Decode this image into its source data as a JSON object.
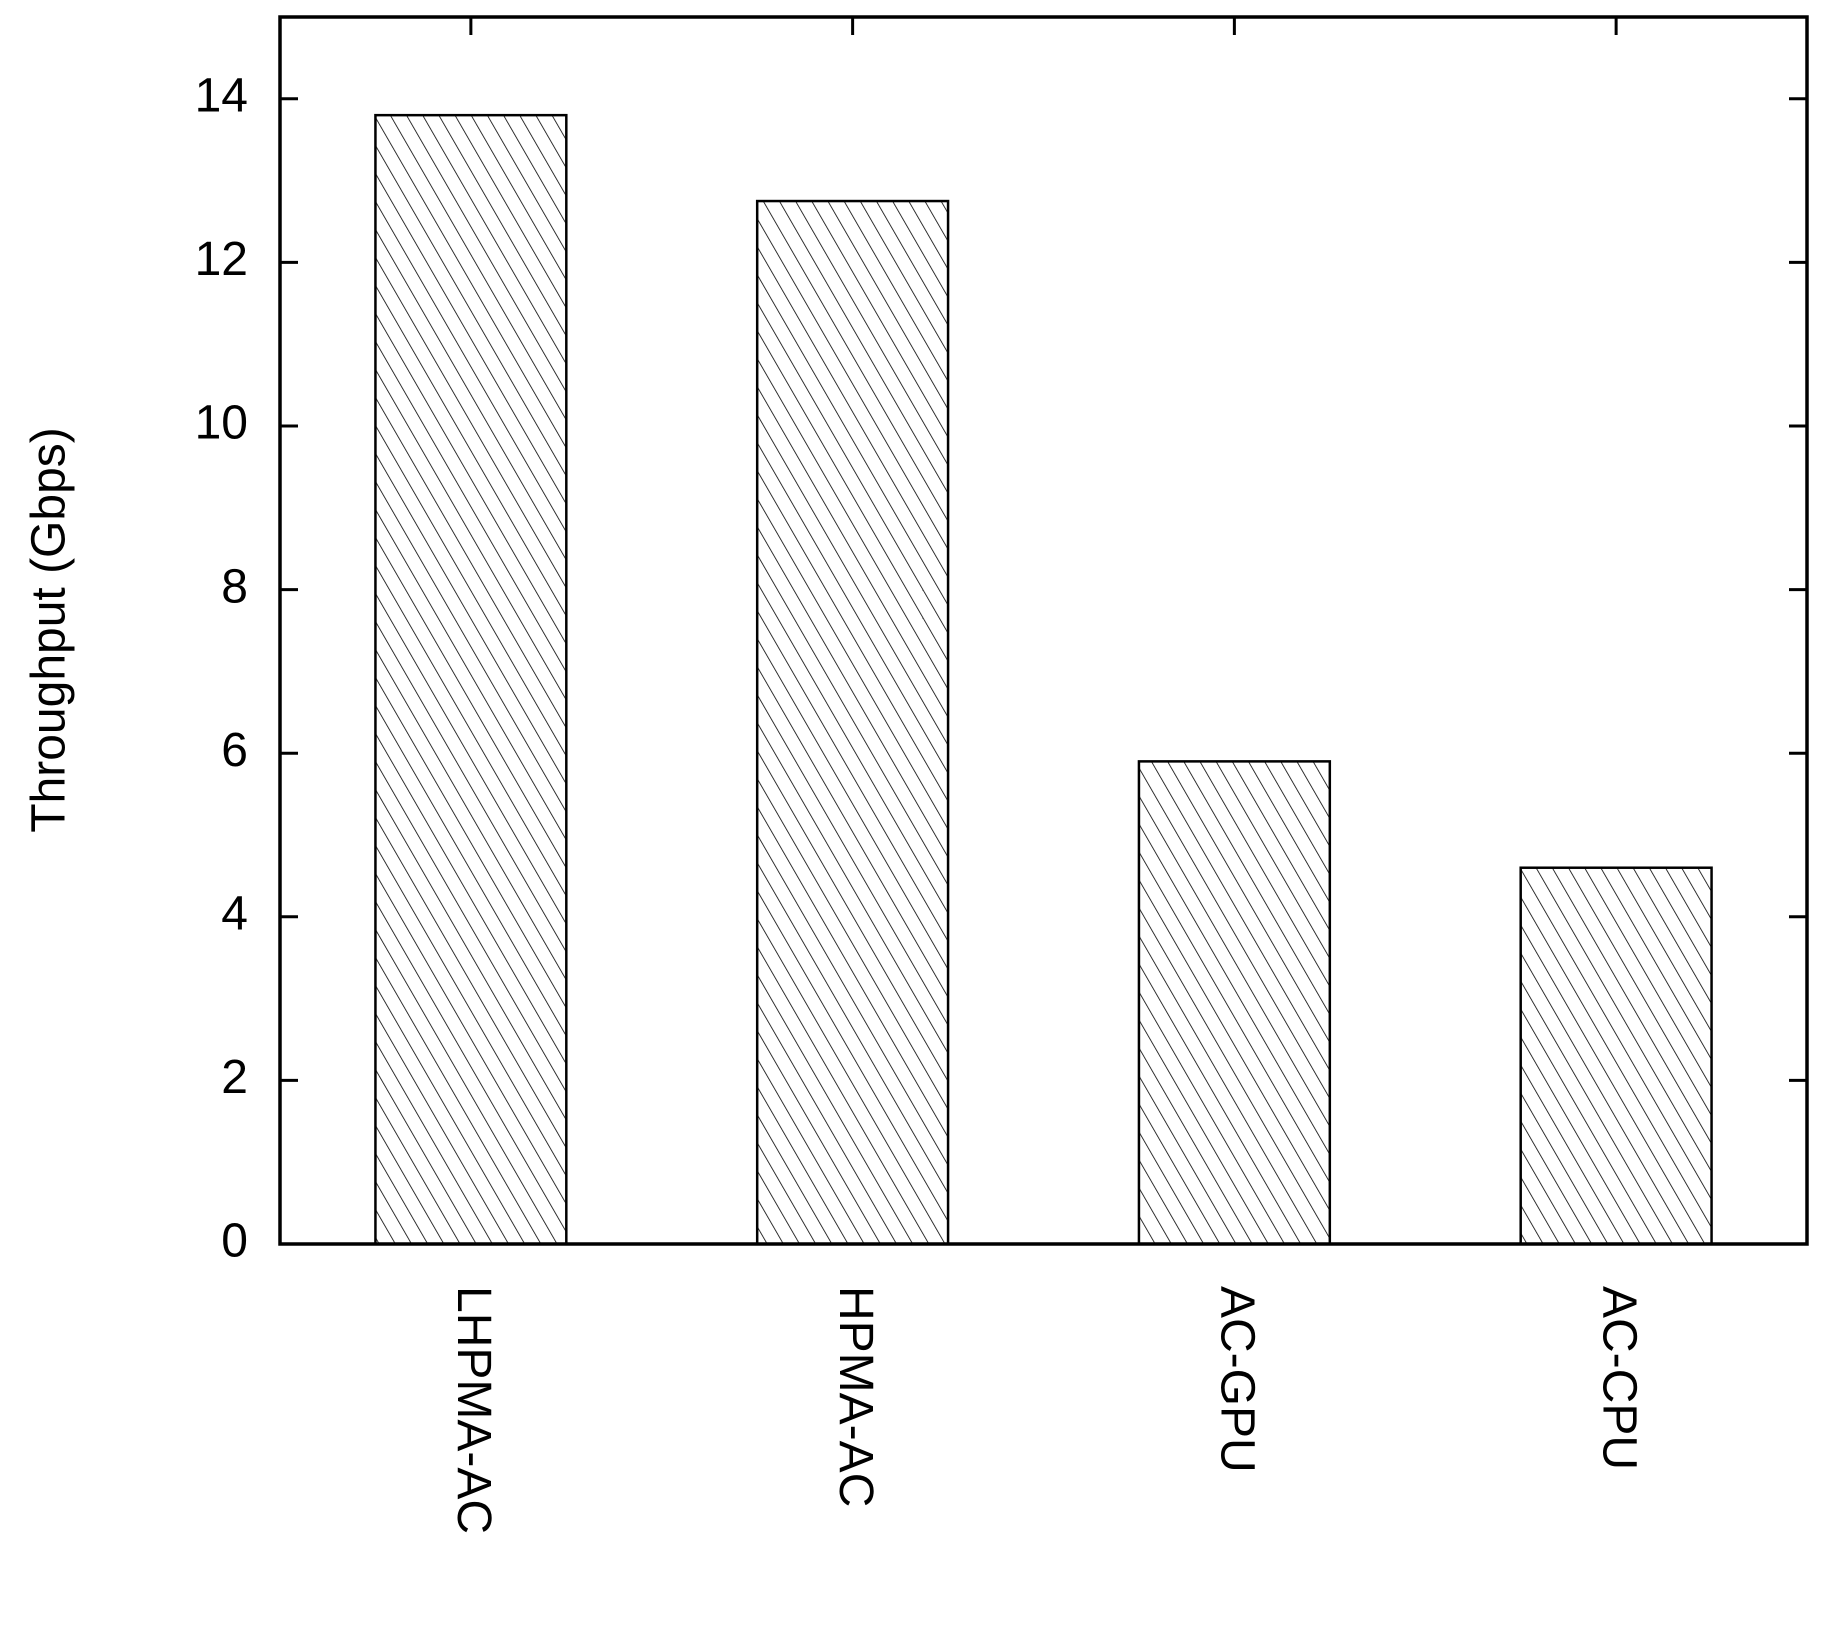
{
  "chart_data": {
    "type": "bar",
    "y_label": "Throughput (Gbps)",
    "categories": [
      "LHPMA-AC",
      "HPMA-AC",
      "AC-GPU",
      "AC-CPU"
    ],
    "values": [
      13.8,
      12.75,
      5.9,
      4.6
    ],
    "color": "#000000",
    "ylim": [
      0,
      15
    ],
    "yticks": [
      0,
      2,
      4,
      6,
      8,
      10,
      12,
      14
    ]
  }
}
